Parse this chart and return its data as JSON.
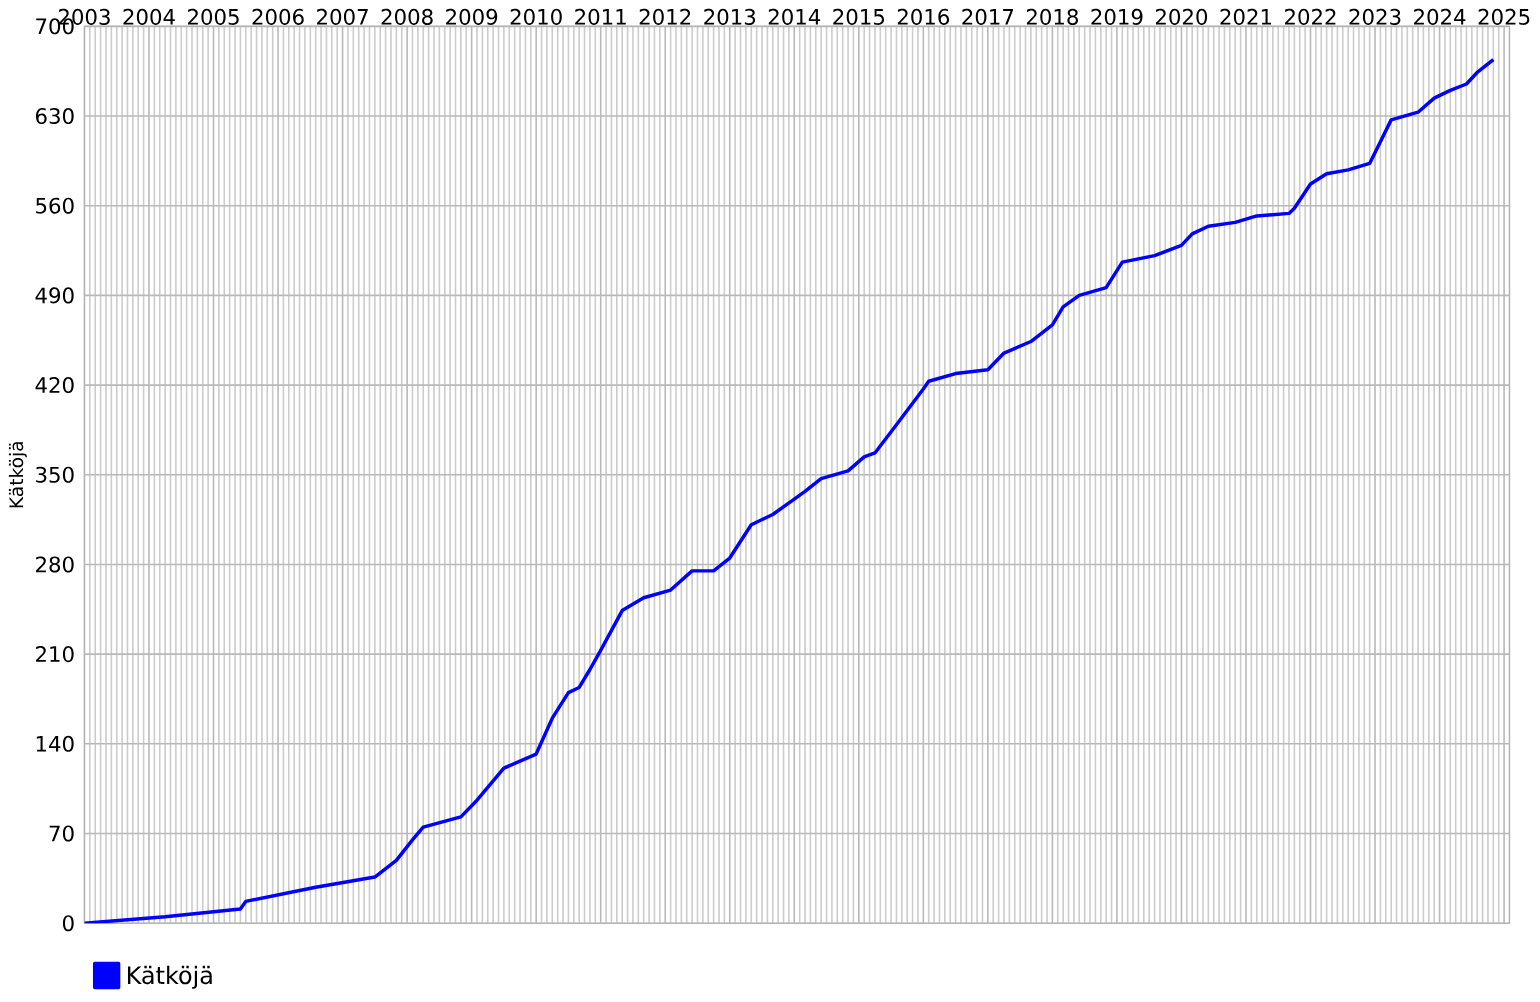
{
  "chart_data": {
    "type": "line",
    "ylabel": "Kätköjä",
    "xlim": [
      "2003-01",
      "2025-02"
    ],
    "xticks": [
      "2003",
      "2004",
      "2005",
      "2006",
      "2007",
      "2008",
      "2009",
      "2010",
      "2011",
      "2012",
      "2013",
      "2014",
      "2015",
      "2016",
      "2017",
      "2018",
      "2019",
      "2020",
      "2021",
      "2022",
      "2023",
      "2024",
      "2025"
    ],
    "ylim": [
      0,
      700
    ],
    "yticks": [
      0,
      70,
      140,
      210,
      280,
      350,
      420,
      490,
      560,
      630,
      700
    ],
    "grid": true,
    "legend": "bottom left",
    "marker": "none",
    "line_style": "solid",
    "x": [
      "2003-01",
      "2004-04",
      "2005-06",
      "2005-07",
      "2006-08",
      "2007-07",
      "2007-11",
      "2008-02",
      "2008-04",
      "2008-11",
      "2009-02",
      "2009-07",
      "2010-01",
      "2010-04",
      "2010-07",
      "2010-09",
      "2010-11",
      "2011-01",
      "2011-05",
      "2011-09",
      "2012-02",
      "2012-06",
      "2012-10",
      "2013-01",
      "2013-05",
      "2013-09",
      "2014-01",
      "2014-03",
      "2014-06",
      "2014-11",
      "2015-02",
      "2015-04",
      "2015-08",
      "2016-01",
      "2016-02",
      "2016-07",
      "2017-01",
      "2017-04",
      "2017-09",
      "2018-01",
      "2018-03",
      "2018-06",
      "2018-11",
      "2019-02",
      "2019-08",
      "2020-01",
      "2020-03",
      "2020-06",
      "2020-11",
      "2021-03",
      "2021-09",
      "2021-10",
      "2022-01",
      "2022-04",
      "2022-08",
      "2022-12",
      "2023-02",
      "2023-04",
      "2023-09",
      "2023-12",
      "2024-03",
      "2024-06",
      "2024-08",
      "2024-11"
    ],
    "series": [
      {
        "name": "Kätköjä",
        "color": "#0000ff",
        "values": [
          0,
          5,
          11,
          17,
          28,
          36,
          49,
          65,
          75,
          83,
          96,
          121,
          132,
          160,
          180,
          184,
          198,
          213,
          244,
          254,
          260,
          275,
          275,
          285,
          311,
          319,
          331,
          337,
          347,
          353,
          364,
          367,
          389,
          417,
          423,
          429,
          432,
          445,
          454,
          467,
          481,
          490,
          496,
          516,
          521,
          529,
          538,
          544,
          547,
          552,
          554,
          558,
          577,
          585,
          588,
          593,
          610,
          627,
          633,
          644,
          650,
          655,
          664,
          674
        ]
      }
    ]
  }
}
